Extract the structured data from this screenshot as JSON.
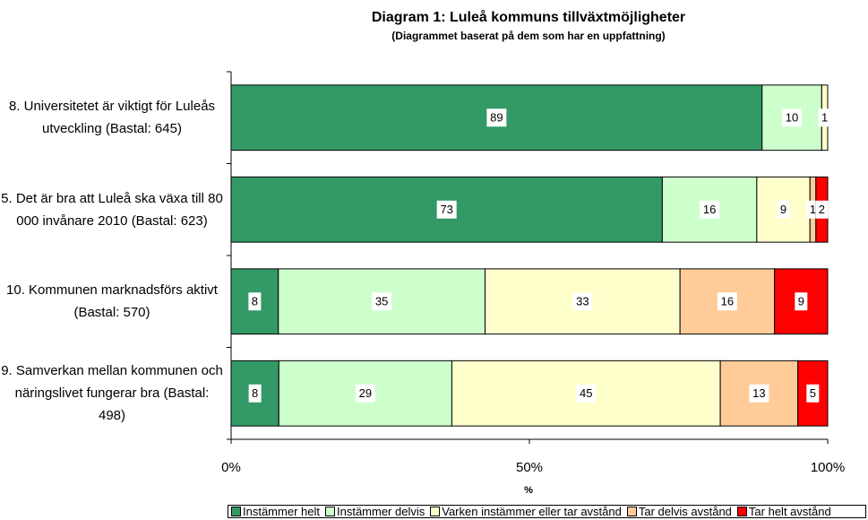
{
  "chart_data": {
    "type": "bar",
    "orientation": "horizontal",
    "stacked_percent": true,
    "title": "Diagram 1: Luleå kommuns tillväxtmöjligheter",
    "subtitle": "(Diagrammet baserat på dem som har en uppfattning)",
    "x_label": "%",
    "categories": [
      "8. Universitetet är viktigt för Luleås utveckling (Bastal: 645)",
      "5. Det är bra att Luleå ska växa till 80 000 invånare 2010 (Bastal: 623)",
      "10. Kommunen marknadsförs aktivt (Bastal: 570)",
      "9. Samverkan mellan kommunen och näringslivet fungerar bra (Bastal: 498)"
    ],
    "series": [
      {
        "name": "Instämmer helt",
        "color": "#339966",
        "values": [
          89,
          73,
          8,
          8
        ]
      },
      {
        "name": "Instämmer delvis",
        "color": "#ccffcc",
        "values": [
          10,
          16,
          35,
          29
        ]
      },
      {
        "name": "Varken instämmer eller tar avstånd",
        "color": "#ffffcc",
        "values": [
          1,
          9,
          33,
          45
        ]
      },
      {
        "name": "Tar delvis avstånd",
        "color": "#ffcc99",
        "values": [
          0,
          1,
          16,
          13
        ]
      },
      {
        "name": "Tar helt avstånd",
        "color": "#ff0000",
        "values": [
          0,
          2,
          9,
          5
        ]
      }
    ],
    "xlim": [
      0,
      100
    ],
    "xticks": [
      {
        "value": 0,
        "label": "0%"
      },
      {
        "value": 50,
        "label": "50%"
      },
      {
        "value": 100,
        "label": "100%"
      }
    ],
    "legend": "bottom"
  }
}
